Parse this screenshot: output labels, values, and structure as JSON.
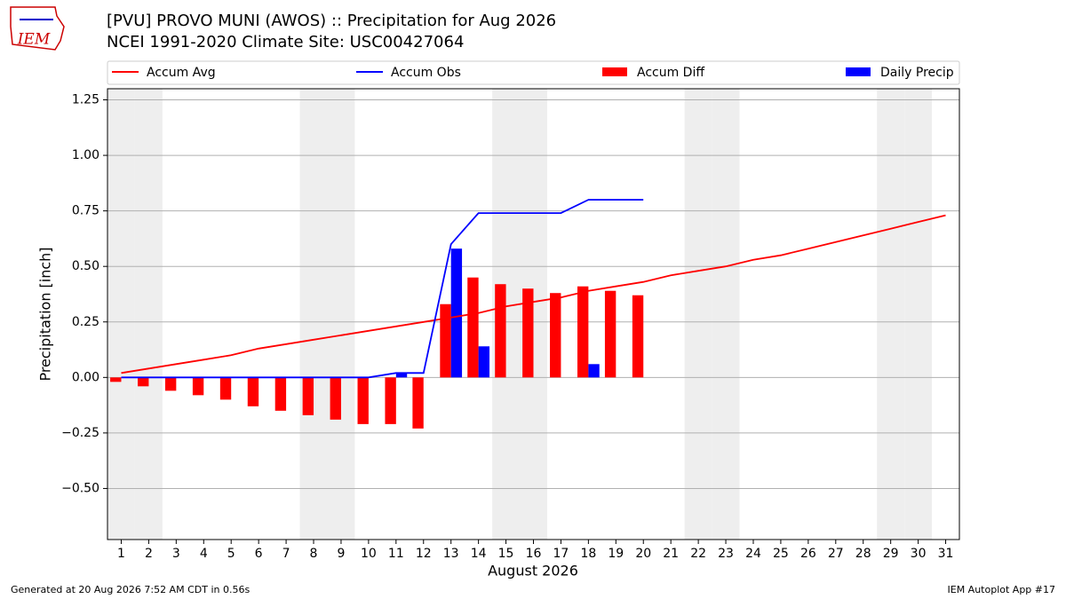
{
  "logo_text": "IEM",
  "footer_left": "Generated at 20 Aug 2026 7:52 AM CDT in 0.56s",
  "footer_right": "IEM Autoplot App #17",
  "chart_data": {
    "type": "combo",
    "title": "[PVU] PROVO MUNI (AWOS) :: Precipitation for Aug 2026",
    "subtitle": "NCEI 1991-2020 Climate Site: USC00427064",
    "xlabel": "August 2026",
    "ylabel": "Precipitation [inch]",
    "x": [
      1,
      2,
      3,
      4,
      5,
      6,
      7,
      8,
      9,
      10,
      11,
      12,
      13,
      14,
      15,
      16,
      17,
      18,
      19,
      20,
      21,
      22,
      23,
      24,
      25,
      26,
      27,
      28,
      29,
      30,
      31
    ],
    "xlim": [
      0.5,
      31.5
    ],
    "xticks": [
      1,
      2,
      3,
      4,
      5,
      6,
      7,
      8,
      9,
      10,
      11,
      12,
      13,
      14,
      15,
      16,
      17,
      18,
      19,
      20,
      21,
      22,
      23,
      24,
      25,
      26,
      27,
      28,
      29,
      30,
      31
    ],
    "ylim": [
      -0.73,
      1.3
    ],
    "yticks": [
      {
        "value": -0.5,
        "label": "−0.50"
      },
      {
        "value": -0.25,
        "label": "−0.25"
      },
      {
        "value": 0,
        "label": "0.00"
      },
      {
        "value": 0.25,
        "label": "0.25"
      },
      {
        "value": 0.5,
        "label": "0.50"
      },
      {
        "value": 0.75,
        "label": "0.75"
      },
      {
        "value": 1,
        "label": "1.00"
      },
      {
        "value": 1.25,
        "label": "1.25"
      }
    ],
    "grid": true,
    "legend": "top",
    "shaded_days": [
      1,
      2,
      8,
      9,
      15,
      16,
      22,
      23,
      29,
      30
    ],
    "shade_color": "#eeeeee",
    "series": [
      {
        "name": "Accum Avg",
        "type": "line",
        "color": "#ff0000",
        "values": [
          0.02,
          0.04,
          0.06,
          0.08,
          0.1,
          0.13,
          0.15,
          0.17,
          0.19,
          0.21,
          0.23,
          0.25,
          0.27,
          0.29,
          0.32,
          0.34,
          0.36,
          0.39,
          0.41,
          0.43,
          0.46,
          0.48,
          0.5,
          0.53,
          0.55,
          0.58,
          0.61,
          0.64,
          0.67,
          0.7,
          0.73
        ]
      },
      {
        "name": "Accum Obs",
        "type": "line",
        "color": "#0000ff",
        "values": [
          0,
          0,
          0,
          0,
          0,
          0,
          0,
          0,
          0,
          0,
          0.02,
          0.02,
          0.6,
          0.74,
          0.74,
          0.74,
          0.74,
          0.8,
          0.8,
          0.8,
          null,
          null,
          null,
          null,
          null,
          null,
          null,
          null,
          null,
          null,
          null
        ]
      },
      {
        "name": "Accum Diff",
        "type": "bar",
        "side": "left",
        "color": "#ff0000",
        "values": [
          -0.02,
          -0.04,
          -0.06,
          -0.08,
          -0.1,
          -0.13,
          -0.15,
          -0.17,
          -0.19,
          -0.21,
          -0.21,
          -0.23,
          0.33,
          0.45,
          0.42,
          0.4,
          0.38,
          0.41,
          0.39,
          0.37,
          null,
          null,
          null,
          null,
          null,
          null,
          null,
          null,
          null,
          null,
          null
        ]
      },
      {
        "name": "Daily Precip",
        "type": "bar",
        "side": "right",
        "color": "#0000ff",
        "values": [
          0,
          0,
          0,
          0,
          0,
          0,
          0,
          0,
          0,
          0,
          0.02,
          0,
          0.58,
          0.14,
          0,
          0,
          0,
          0.06,
          0,
          0,
          null,
          null,
          null,
          null,
          null,
          null,
          null,
          null,
          null,
          null,
          null
        ]
      }
    ]
  }
}
